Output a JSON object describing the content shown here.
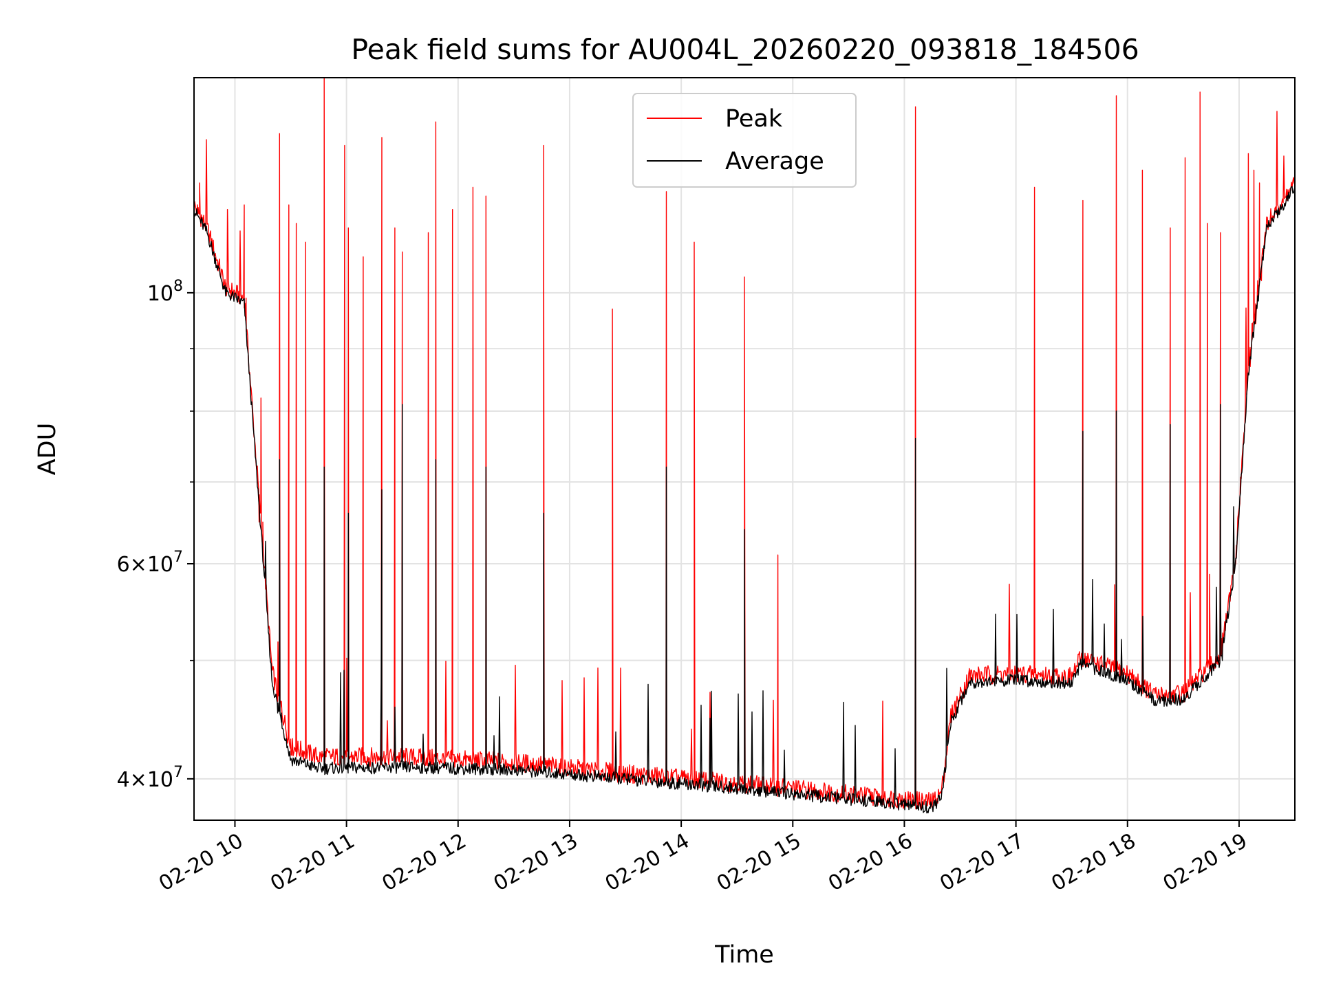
{
  "chart_data": {
    "type": "line",
    "title": "Peak field sums for AU004L_20260220_093818_184506",
    "xlabel": "Time",
    "ylabel": "ADU",
    "yscale": "log",
    "ylim": [
      37000000,
      150000000
    ],
    "xlim": [
      "2026-02-20 09:38",
      "2026-02-20 19:30"
    ],
    "grid": true,
    "legend_position": "top-center",
    "x_ticks": [
      "02-20 10",
      "02-20 11",
      "02-20 12",
      "02-20 13",
      "02-20 14",
      "02-20 15",
      "02-20 16",
      "02-20 17",
      "02-20 18",
      "02-20 19"
    ],
    "y_major_ticks": [
      {
        "value": 40000000,
        "mantissa": "4",
        "exp": "7"
      },
      {
        "value": 60000000,
        "mantissa": "6",
        "exp": "7"
      },
      {
        "value": 100000000,
        "mantissa": "",
        "exp": "8"
      }
    ],
    "y_minor_ticks": [
      50000000,
      70000000,
      80000000,
      90000000
    ],
    "series": [
      {
        "name": "Peak",
        "color": "#ff0000",
        "baseline": [
          [
            "2026-02-20 09:38",
            118000000
          ],
          [
            "2026-02-20 09:45",
            113000000
          ],
          [
            "2026-02-20 09:55",
            101000000
          ],
          [
            "2026-02-20 10:05",
            99000000
          ],
          [
            "2026-02-20 10:10",
            78000000
          ],
          [
            "2026-02-20 10:15",
            62000000
          ],
          [
            "2026-02-20 10:20",
            49000000
          ],
          [
            "2026-02-20 10:30",
            42500000
          ],
          [
            "2026-02-20 10:45",
            41700000
          ],
          [
            "2026-02-20 11:30",
            41700000
          ],
          [
            "2026-02-20 12:30",
            41300000
          ],
          [
            "2026-02-20 13:30",
            40400000
          ],
          [
            "2026-02-20 14:30",
            39700000
          ],
          [
            "2026-02-20 15:30",
            38900000
          ],
          [
            "2026-02-20 16:15",
            38300000
          ],
          [
            "2026-02-20 16:20",
            39000000
          ],
          [
            "2026-02-20 16:25",
            45000000
          ],
          [
            "2026-02-20 16:35",
            48600000
          ],
          [
            "2026-02-20 17:00",
            48800000
          ],
          [
            "2026-02-20 17:30",
            48500000
          ],
          [
            "2026-02-20 17:35",
            50300000
          ],
          [
            "2026-02-20 18:00",
            48800000
          ],
          [
            "2026-02-20 18:15",
            46800000
          ],
          [
            "2026-02-20 18:30",
            47000000
          ],
          [
            "2026-02-20 18:50",
            50500000
          ],
          [
            "2026-02-20 18:58",
            60000000
          ],
          [
            "2026-02-20 19:05",
            87000000
          ],
          [
            "2026-02-20 19:15",
            114000000
          ],
          [
            "2026-02-20 19:30",
            123000000
          ]
        ],
        "spikes": [
          [
            "2026-02-20 09:41",
            123000000
          ],
          [
            "2026-02-20 09:56",
            117000000
          ],
          [
            "2026-02-20 10:05",
            118000000
          ],
          [
            "2026-02-20 10:14",
            82000000
          ],
          [
            "2026-02-20 10:24",
            135000000
          ],
          [
            "2026-02-20 10:29",
            118000000
          ],
          [
            "2026-02-20 10:33",
            114000000
          ],
          [
            "2026-02-20 10:38",
            110000000
          ],
          [
            "2026-02-20 10:48",
            150000000
          ],
          [
            "2026-02-20 10:59",
            132000000
          ],
          [
            "2026-02-20 11:01",
            113000000
          ],
          [
            "2026-02-20 11:09",
            107000000
          ],
          [
            "2026-02-20 11:19",
            134000000
          ],
          [
            "2026-02-20 11:26",
            113000000
          ],
          [
            "2026-02-20 11:30",
            108000000
          ],
          [
            "2026-02-20 11:44",
            112000000
          ],
          [
            "2026-02-20 11:48",
            138000000
          ],
          [
            "2026-02-20 11:57",
            117000000
          ],
          [
            "2026-02-20 12:08",
            122000000
          ],
          [
            "2026-02-20 12:15",
            120000000
          ],
          [
            "2026-02-20 12:46",
            132000000
          ],
          [
            "2026-02-20 13:23",
            97000000
          ],
          [
            "2026-02-20 13:52",
            121000000
          ],
          [
            "2026-02-20 14:07",
            110000000
          ],
          [
            "2026-02-20 14:34",
            103000000
          ],
          [
            "2026-02-20 14:52",
            61000000
          ],
          [
            "2026-02-20 16:06",
            142000000
          ],
          [
            "2026-02-20 17:10",
            122000000
          ],
          [
            "2026-02-20 17:36",
            119000000
          ],
          [
            "2026-02-20 17:54",
            145000000
          ],
          [
            "2026-02-20 18:08",
            126000000
          ],
          [
            "2026-02-20 18:23",
            113000000
          ],
          [
            "2026-02-20 18:31",
            129000000
          ],
          [
            "2026-02-20 18:39",
            146000000
          ],
          [
            "2026-02-20 18:43",
            114000000
          ],
          [
            "2026-02-20 18:50",
            112000000
          ],
          [
            "2026-02-20 19:05",
            130000000
          ],
          [
            "2026-02-20 19:08",
            126000000
          ],
          [
            "2026-02-20 19:11",
            123000000
          ]
        ]
      },
      {
        "name": "Average",
        "color": "#000000",
        "baseline": [
          [
            "2026-02-20 09:38",
            117000000
          ],
          [
            "2026-02-20 09:45",
            112000000
          ],
          [
            "2026-02-20 09:55",
            100000000
          ],
          [
            "2026-02-20 10:05",
            98000000
          ],
          [
            "2026-02-20 10:10",
            77000000
          ],
          [
            "2026-02-20 10:15",
            61000000
          ],
          [
            "2026-02-20 10:20",
            48000000
          ],
          [
            "2026-02-20 10:30",
            41500000
          ],
          [
            "2026-02-20 10:45",
            40800000
          ],
          [
            "2026-02-20 11:30",
            40900000
          ],
          [
            "2026-02-20 12:30",
            40700000
          ],
          [
            "2026-02-20 13:30",
            40000000
          ],
          [
            "2026-02-20 14:30",
            39300000
          ],
          [
            "2026-02-20 15:30",
            38500000
          ],
          [
            "2026-02-20 16:15",
            37900000
          ],
          [
            "2026-02-20 16:20",
            38600000
          ],
          [
            "2026-02-20 16:25",
            44500000
          ],
          [
            "2026-02-20 16:35",
            48000000
          ],
          [
            "2026-02-20 17:00",
            48200000
          ],
          [
            "2026-02-20 17:30",
            47900000
          ],
          [
            "2026-02-20 17:35",
            49700000
          ],
          [
            "2026-02-20 18:00",
            48200000
          ],
          [
            "2026-02-20 18:15",
            46300000
          ],
          [
            "2026-02-20 18:30",
            46500000
          ],
          [
            "2026-02-20 18:50",
            50000000
          ],
          [
            "2026-02-20 18:58",
            59500000
          ],
          [
            "2026-02-20 19:05",
            86000000
          ],
          [
            "2026-02-20 19:15",
            113000000
          ],
          [
            "2026-02-20 19:30",
            122000000
          ]
        ],
        "spikes": [
          [
            "2026-02-20 10:24",
            73000000
          ],
          [
            "2026-02-20 10:48",
            72000000
          ],
          [
            "2026-02-20 11:01",
            66000000
          ],
          [
            "2026-02-20 11:19",
            69000000
          ],
          [
            "2026-02-20 11:30",
            81000000
          ],
          [
            "2026-02-20 11:48",
            73000000
          ],
          [
            "2026-02-20 12:15",
            72000000
          ],
          [
            "2026-02-20 12:46",
            66000000
          ],
          [
            "2026-02-20 13:52",
            72000000
          ],
          [
            "2026-02-20 14:34",
            64000000
          ],
          [
            "2026-02-20 16:06",
            76000000
          ],
          [
            "2026-02-20 17:36",
            77000000
          ],
          [
            "2026-02-20 17:54",
            80000000
          ],
          [
            "2026-02-20 18:23",
            78000000
          ],
          [
            "2026-02-20 18:50",
            81000000
          ]
        ]
      }
    ]
  }
}
